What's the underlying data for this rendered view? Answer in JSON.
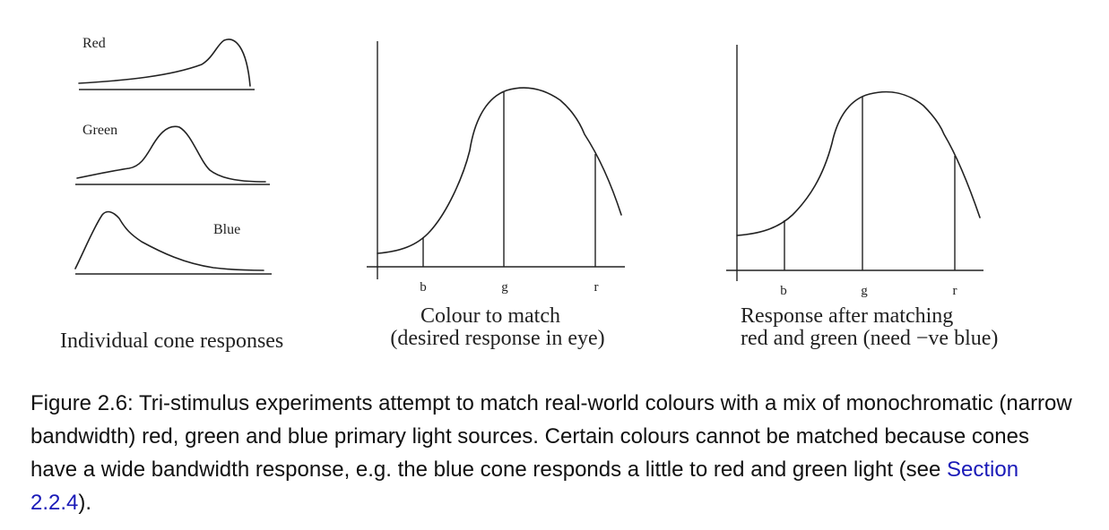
{
  "panel_left": {
    "labels": {
      "red": "Red",
      "green": "Green",
      "blue": "Blue"
    },
    "title": "Individual cone responses"
  },
  "panel_middle": {
    "ticks": [
      "b",
      "g",
      "r"
    ],
    "title_line1": "Colour to match",
    "title_line2": "(desired response in eye)"
  },
  "panel_right": {
    "ticks": [
      "b",
      "g",
      "r"
    ],
    "title_line1": "Response after matching",
    "title_line2": "red and green (need −ve blue)"
  },
  "caption": {
    "text_before_link": "Figure 2.6:  Tri-stimulus experiments attempt to match real-world colours with a mix of monochromatic (narrow bandwidth) red, green and blue primary light sources. Certain colours cannot be matched because cones have a wide bandwidth response, e.g. the blue cone responds a little to red and green light (see ",
    "link_text": "Section 2.2.4",
    "text_after_link": ")."
  },
  "colors": {
    "link": "#1a1ab8",
    "ink": "#222222"
  }
}
